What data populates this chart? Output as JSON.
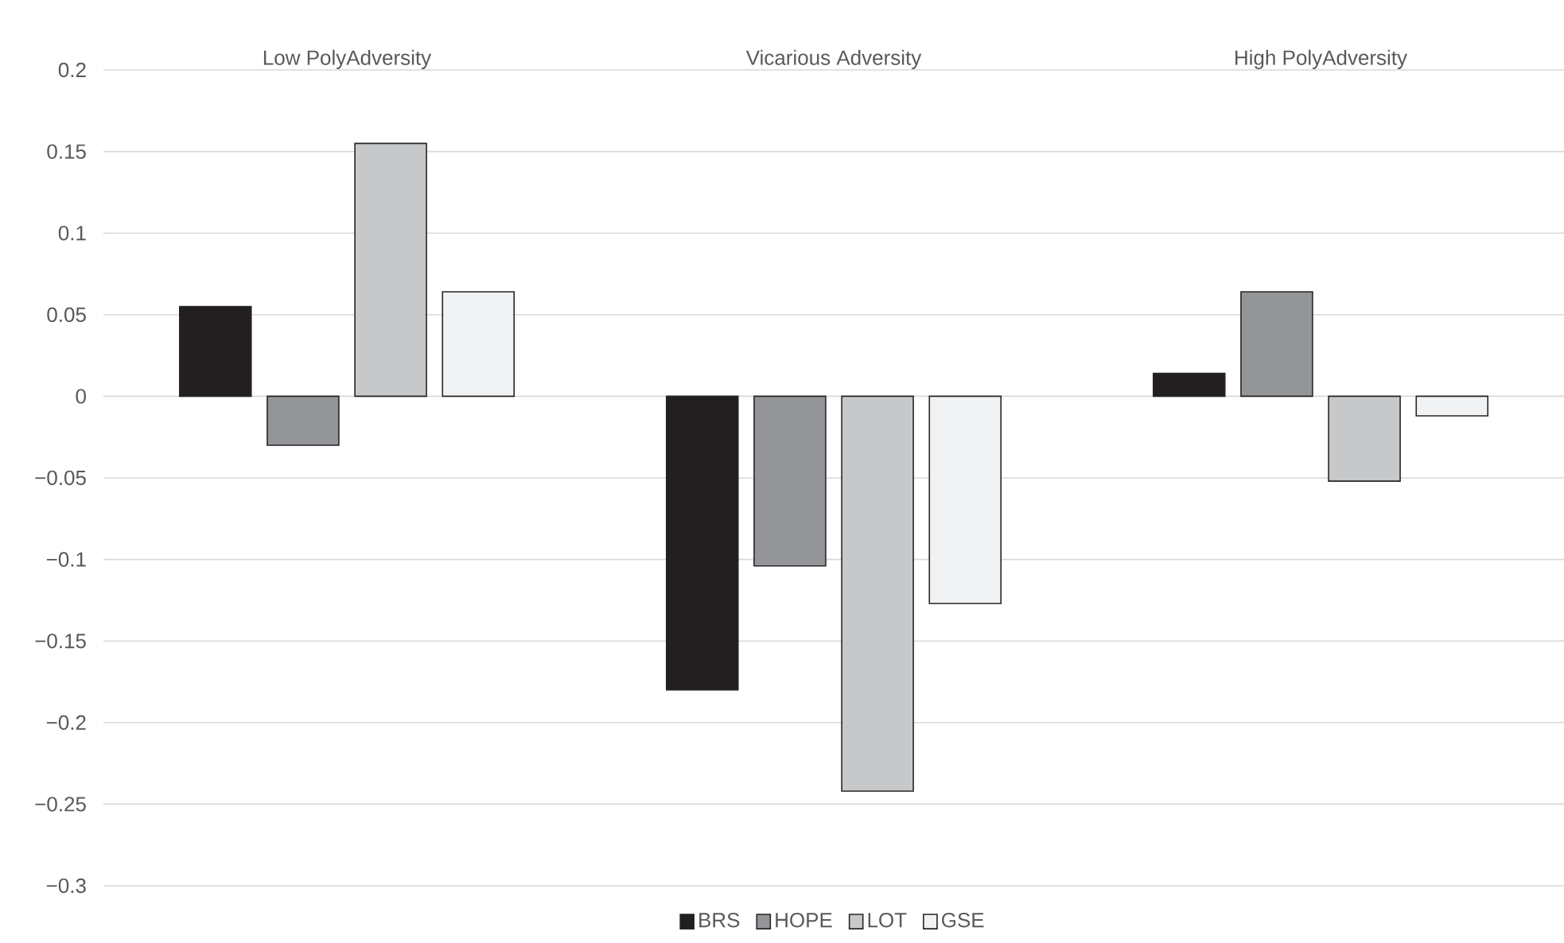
{
  "chart_data": {
    "type": "bar",
    "categories": [
      "Low PolyAdversity",
      "Vicarious Adversity",
      "High PolyAdversity"
    ],
    "series": [
      {
        "name": "BRS",
        "color": "#231f20",
        "values": [
          0.055,
          -0.18,
          0.014
        ]
      },
      {
        "name": "HOPE",
        "color": "#939598",
        "values": [
          -0.03,
          -0.104,
          0.064
        ]
      },
      {
        "name": "LOT",
        "color": "#c7c8ca",
        "values": [
          0.155,
          -0.242,
          -0.052
        ]
      },
      {
        "name": "GSE",
        "color": "#f1f2f4",
        "values": [
          0.064,
          -0.127,
          -0.012
        ]
      }
    ],
    "ylim": [
      -0.3,
      0.2
    ],
    "yticks": [
      {
        "value": -0.3,
        "label": "−0.3"
      },
      {
        "value": -0.25,
        "label": "−0.25"
      },
      {
        "value": -0.2,
        "label": "−0.2"
      },
      {
        "value": -0.15,
        "label": "−0.15"
      },
      {
        "value": -0.1,
        "label": "−0.1"
      },
      {
        "value": -0.05,
        "label": "−0.05"
      },
      0,
      0.05,
      0.1,
      0.15,
      0.2
    ],
    "grid": "y",
    "legend": "bottom"
  }
}
